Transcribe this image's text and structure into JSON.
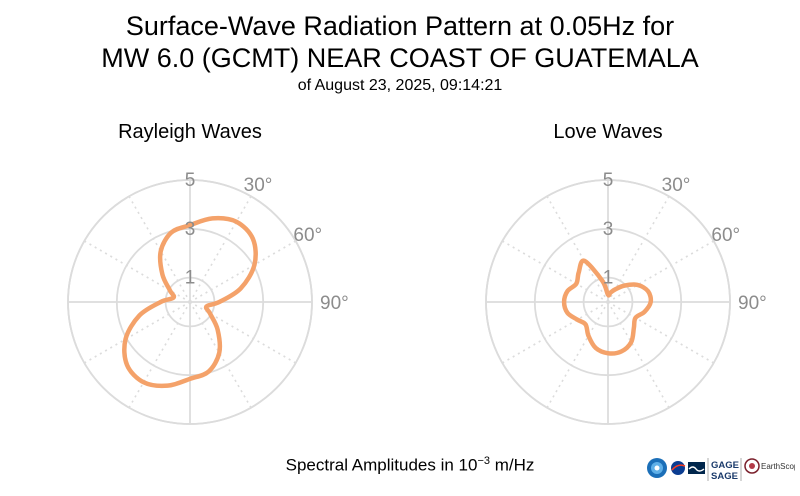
{
  "title": {
    "line1": "Surface-Wave Radiation Pattern at 0.05Hz for",
    "line2": "MW 6.0 (GCMT) NEAR COAST OF GUATEMALA",
    "line3": "of August 23, 2025, 09:14:21"
  },
  "footer": {
    "prefix": "Spectral Amplitudes in 10",
    "exponent": "−3",
    "suffix": " m/Hz"
  },
  "logos": {
    "gage": "GAGE",
    "sage": "SAGE",
    "earthscope": "EarthScope"
  },
  "colors": {
    "curve": "#f4a26a",
    "grid": "#dcdcdc",
    "tick": "#8c8c8c"
  },
  "chart_data": [
    {
      "type": "polar",
      "title": "Rayleigh Waves",
      "r_ticks": [
        "1",
        "3",
        "5"
      ],
      "r_max": 5,
      "angle_ticks": [
        "30°",
        "60°",
        "90°"
      ],
      "series": [
        {
          "theta": [
            0,
            15,
            30,
            45,
            60,
            75,
            90,
            105,
            120,
            135,
            150,
            165,
            180,
            195,
            210,
            225,
            240,
            255,
            270,
            285,
            300,
            315,
            330,
            345
          ],
          "r": [
            3.15,
            3.55,
            3.8,
            3.65,
            3.05,
            2.15,
            1.2,
            0.7,
            0.95,
            1.6,
            2.4,
            2.95,
            3.15,
            3.55,
            3.8,
            3.65,
            3.05,
            2.15,
            1.2,
            0.7,
            0.95,
            1.6,
            2.4,
            2.95
          ]
        }
      ]
    },
    {
      "type": "polar",
      "title": "Love Waves",
      "r_ticks": [
        "1",
        "3",
        "5"
      ],
      "r_max": 5,
      "angle_ticks": [
        "30°",
        "60°",
        "90°"
      ],
      "series": [
        {
          "theta": [
            0,
            15,
            30,
            45,
            60,
            75,
            90,
            105,
            120,
            135,
            150,
            165,
            180,
            195,
            210,
            225,
            240,
            255,
            270,
            285,
            300,
            315,
            330,
            345
          ],
          "r": [
            0.3,
            0.4,
            0.6,
            0.95,
            1.4,
            1.7,
            1.75,
            1.55,
            1.3,
            1.5,
            1.9,
            2.1,
            2.1,
            1.95,
            1.6,
            1.3,
            1.45,
            1.72,
            1.8,
            1.72,
            1.5,
            1.7,
            1.95,
            0.9
          ]
        }
      ]
    }
  ]
}
